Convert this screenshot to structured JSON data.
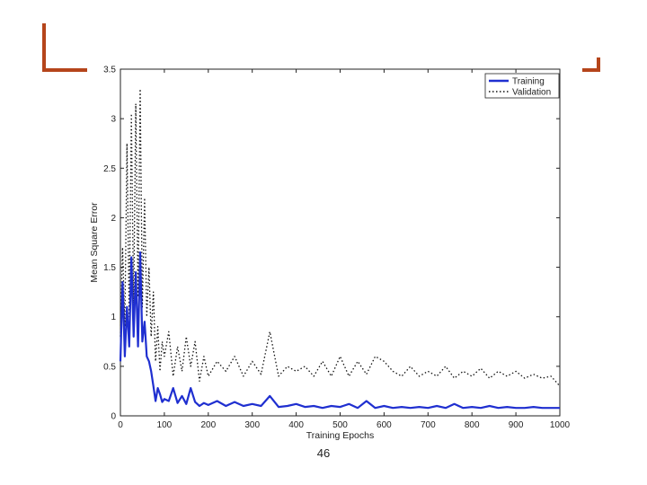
{
  "slide": {
    "page_number": "46",
    "accent_color": "#b5451b"
  },
  "chart_data": {
    "type": "line",
    "title": "",
    "xlabel": "Training Epochs",
    "ylabel": "Mean Square Error",
    "xlim": [
      0,
      1000
    ],
    "ylim": [
      0,
      3.5
    ],
    "xticks": [
      0,
      100,
      200,
      300,
      400,
      500,
      600,
      700,
      800,
      900,
      1000
    ],
    "yticks": [
      0,
      0.5,
      1,
      1.5,
      2,
      2.5,
      3,
      3.5
    ],
    "xtick_labels": [
      "0",
      "100",
      "200",
      "300",
      "400",
      "500",
      "600",
      "700",
      "800",
      "900",
      "1000"
    ],
    "ytick_labels": [
      "0",
      "0.5",
      "1",
      "1.5",
      "2",
      "2.5",
      "3",
      "3.5"
    ],
    "grid": false,
    "legend_position": "top-right",
    "series": [
      {
        "name": "Training",
        "style": "solid",
        "color": "#1f2fd0",
        "x": [
          0,
          5,
          10,
          15,
          20,
          25,
          30,
          35,
          40,
          45,
          50,
          55,
          60,
          65,
          70,
          75,
          80,
          85,
          90,
          95,
          100,
          110,
          120,
          130,
          140,
          150,
          160,
          170,
          180,
          190,
          200,
          220,
          240,
          260,
          280,
          300,
          320,
          340,
          360,
          380,
          400,
          420,
          440,
          460,
          480,
          500,
          520,
          540,
          560,
          580,
          600,
          620,
          640,
          660,
          680,
          700,
          720,
          740,
          760,
          780,
          800,
          820,
          840,
          860,
          880,
          900,
          920,
          940,
          960,
          980,
          1000
        ],
        "y": [
          0.55,
          1.35,
          0.6,
          1.1,
          0.7,
          1.6,
          0.8,
          1.45,
          0.7,
          1.65,
          0.75,
          0.95,
          0.6,
          0.55,
          0.45,
          0.3,
          0.15,
          0.28,
          0.22,
          0.14,
          0.17,
          0.15,
          0.28,
          0.13,
          0.2,
          0.12,
          0.28,
          0.14,
          0.1,
          0.13,
          0.11,
          0.15,
          0.1,
          0.14,
          0.1,
          0.12,
          0.1,
          0.2,
          0.09,
          0.1,
          0.12,
          0.09,
          0.1,
          0.08,
          0.1,
          0.09,
          0.12,
          0.08,
          0.15,
          0.08,
          0.1,
          0.08,
          0.09,
          0.08,
          0.09,
          0.08,
          0.1,
          0.08,
          0.12,
          0.08,
          0.09,
          0.08,
          0.1,
          0.08,
          0.09,
          0.08,
          0.08,
          0.09,
          0.08,
          0.08,
          0.08
        ]
      },
      {
        "name": "Validation",
        "style": "dotted",
        "color": "#111111",
        "x": [
          0,
          5,
          10,
          15,
          20,
          25,
          30,
          35,
          40,
          45,
          50,
          55,
          60,
          65,
          70,
          75,
          80,
          85,
          90,
          95,
          100,
          110,
          120,
          130,
          140,
          150,
          160,
          170,
          180,
          190,
          200,
          220,
          240,
          260,
          280,
          300,
          320,
          340,
          360,
          380,
          400,
          420,
          440,
          460,
          480,
          500,
          520,
          540,
          560,
          580,
          600,
          620,
          640,
          660,
          680,
          700,
          720,
          740,
          760,
          780,
          800,
          820,
          840,
          860,
          880,
          900,
          920,
          940,
          960,
          980,
          1000
        ],
        "y": [
          0.8,
          1.7,
          0.9,
          2.75,
          1.0,
          3.05,
          1.1,
          3.15,
          1.2,
          3.3,
          1.1,
          2.2,
          1.0,
          1.5,
          0.8,
          1.25,
          0.55,
          0.9,
          0.45,
          0.75,
          0.6,
          0.85,
          0.4,
          0.7,
          0.45,
          0.8,
          0.5,
          0.75,
          0.35,
          0.6,
          0.4,
          0.55,
          0.45,
          0.6,
          0.4,
          0.55,
          0.42,
          0.85,
          0.4,
          0.5,
          0.45,
          0.5,
          0.4,
          0.55,
          0.4,
          0.6,
          0.4,
          0.55,
          0.42,
          0.6,
          0.55,
          0.45,
          0.4,
          0.5,
          0.4,
          0.45,
          0.4,
          0.5,
          0.38,
          0.45,
          0.4,
          0.48,
          0.38,
          0.45,
          0.4,
          0.45,
          0.38,
          0.42,
          0.38,
          0.4,
          0.3
        ]
      }
    ]
  }
}
